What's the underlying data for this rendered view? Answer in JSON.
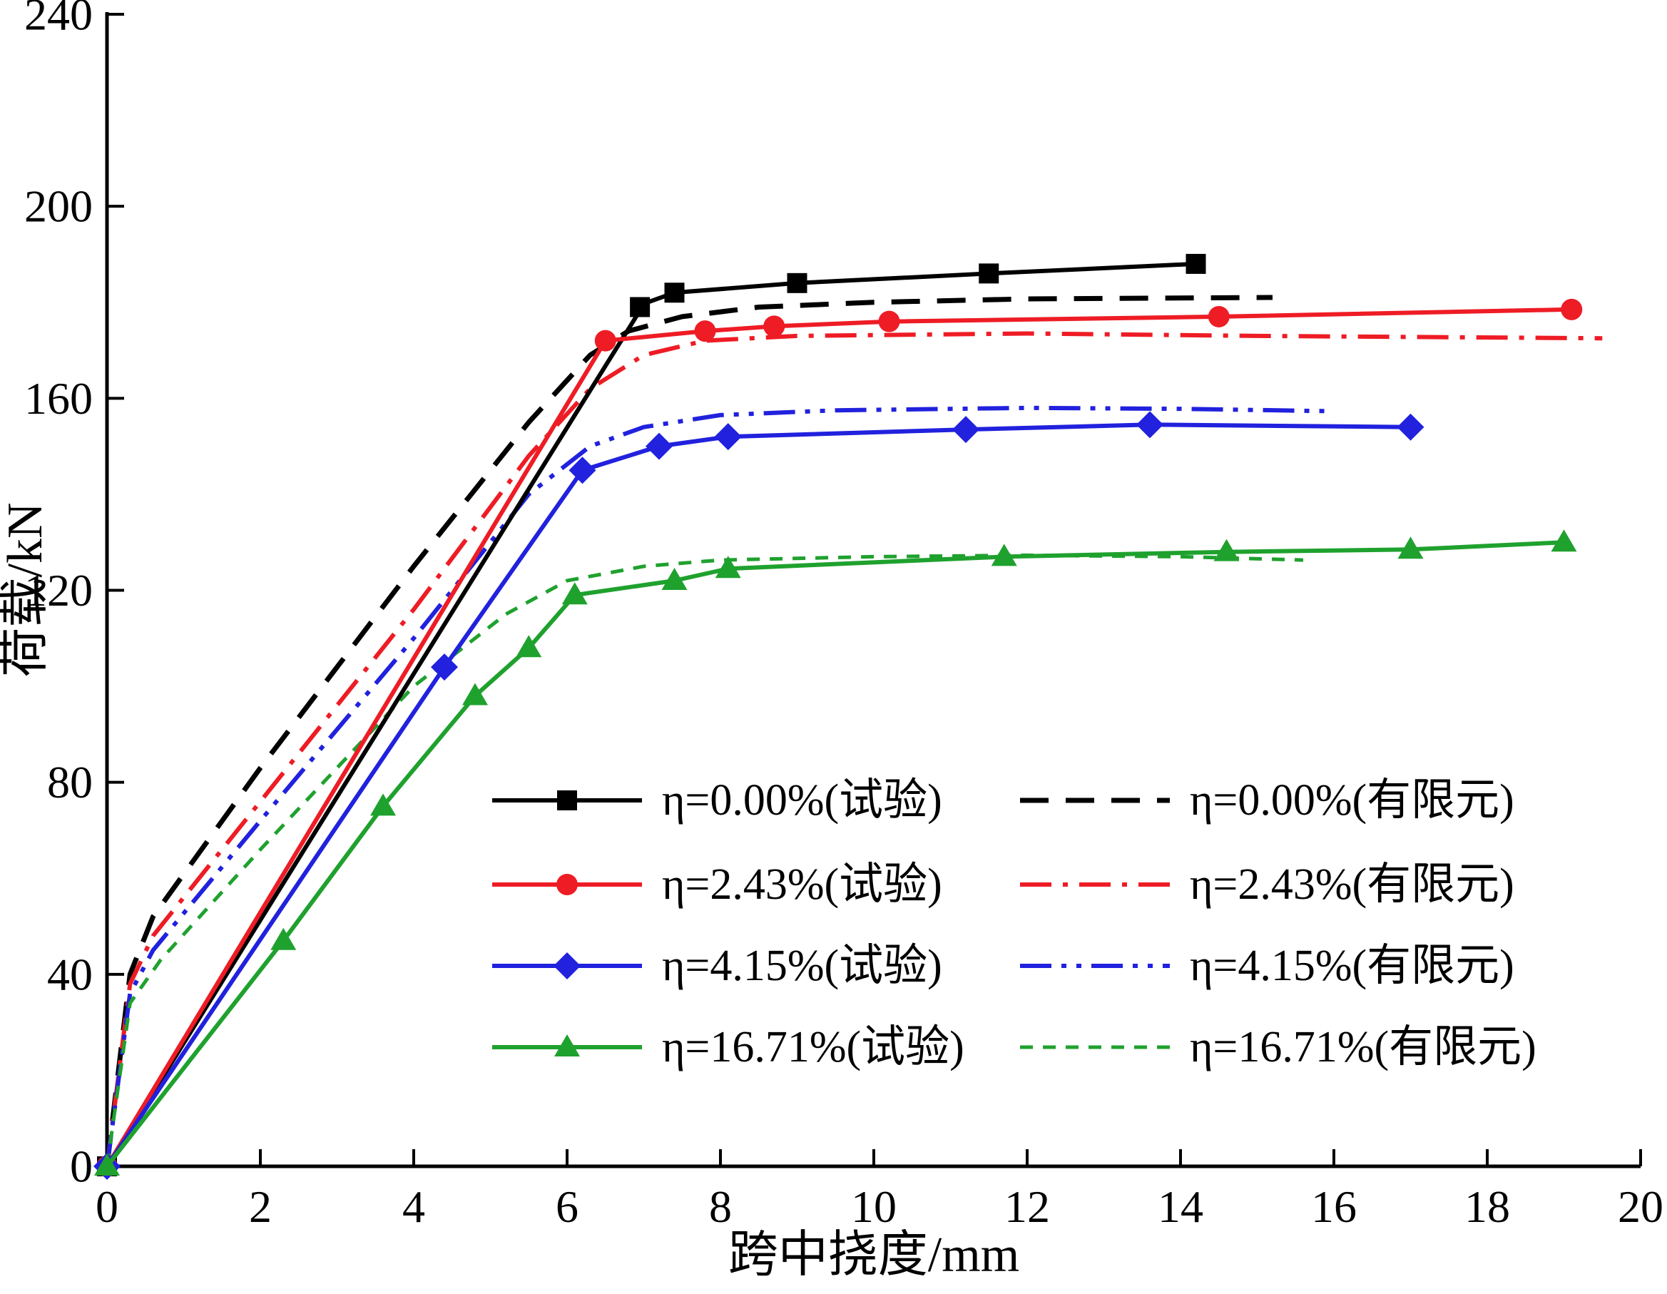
{
  "chart_data": {
    "type": "line",
    "title": "",
    "xlabel": "跨中挠度/mm",
    "ylabel": "荷载/kN",
    "xlim": [
      0,
      20
    ],
    "ylim": [
      0,
      240
    ],
    "xticks": [
      0,
      2,
      4,
      6,
      8,
      10,
      12,
      14,
      16,
      18,
      20
    ],
    "yticks": [
      0,
      40,
      80,
      120,
      160,
      200,
      240
    ],
    "grid": false,
    "legend_position": "inside-lower-center",
    "legend_columns": 2,
    "series": [
      {
        "id": "test-0-00",
        "label": "η=0.00%(试验)",
        "color": "#000000",
        "line": "solid",
        "marker": "square",
        "points": [
          [
            0,
            0
          ],
          [
            6.9,
            177
          ],
          [
            7.05,
            180
          ],
          [
            7.4,
            182
          ],
          [
            9.0,
            184
          ],
          [
            11.5,
            186
          ],
          [
            14.2,
            188
          ]
        ],
        "marker_points": [
          [
            0,
            0
          ],
          [
            6.95,
            179
          ],
          [
            7.4,
            182
          ],
          [
            9.0,
            184
          ],
          [
            11.5,
            186
          ],
          [
            14.2,
            188
          ]
        ]
      },
      {
        "id": "test-2-43",
        "label": "η=2.43%(试验)",
        "color": "#ee1c25",
        "line": "solid",
        "marker": "circle",
        "points": [
          [
            0,
            0
          ],
          [
            6.5,
            172
          ],
          [
            7.8,
            174
          ],
          [
            8.7,
            175
          ],
          [
            10.2,
            176
          ],
          [
            14.5,
            177
          ],
          [
            19.1,
            178.5
          ]
        ],
        "marker_points": [
          [
            0,
            0
          ],
          [
            6.5,
            172
          ],
          [
            7.8,
            174
          ],
          [
            8.7,
            175
          ],
          [
            10.2,
            176
          ],
          [
            14.5,
            177
          ],
          [
            19.1,
            178.5
          ]
        ]
      },
      {
        "id": "test-4-15",
        "label": "η=4.15%(试验)",
        "color": "#2121de",
        "line": "solid",
        "marker": "diamond",
        "points": [
          [
            0,
            0
          ],
          [
            4.4,
            104
          ],
          [
            6.2,
            145
          ],
          [
            7.2,
            150
          ],
          [
            8.1,
            152
          ],
          [
            11.2,
            153.5
          ],
          [
            13.6,
            154.5
          ],
          [
            17.0,
            154
          ]
        ],
        "marker_points": [
          [
            0,
            0
          ],
          [
            4.4,
            104
          ],
          [
            6.2,
            145
          ],
          [
            7.2,
            150
          ],
          [
            8.1,
            152
          ],
          [
            11.2,
            153.5
          ],
          [
            13.6,
            154.5
          ],
          [
            17.0,
            154
          ]
        ]
      },
      {
        "id": "test-16-71",
        "label": "η=16.71%(试验)",
        "color": "#1fa12e",
        "line": "solid",
        "marker": "triangle",
        "points": [
          [
            0,
            0
          ],
          [
            2.3,
            47
          ],
          [
            3.6,
            75
          ],
          [
            4.8,
            98
          ],
          [
            5.5,
            108
          ],
          [
            6.1,
            119
          ],
          [
            7.4,
            122
          ],
          [
            8.1,
            124.5
          ],
          [
            11.7,
            127
          ],
          [
            14.6,
            128
          ],
          [
            17.0,
            128.5
          ],
          [
            19.0,
            130
          ]
        ],
        "marker_points": [
          [
            0,
            0
          ],
          [
            2.3,
            47
          ],
          [
            3.6,
            75
          ],
          [
            4.8,
            98
          ],
          [
            5.5,
            108
          ],
          [
            6.1,
            119
          ],
          [
            7.4,
            122
          ],
          [
            8.1,
            124.5
          ],
          [
            11.7,
            127
          ],
          [
            14.6,
            128
          ],
          [
            17.0,
            128.5
          ],
          [
            19.0,
            130
          ]
        ]
      },
      {
        "id": "fe-0-00",
        "label": "η=0.00%(有限元)",
        "color": "#000000",
        "line": "dash",
        "marker": "none",
        "points": [
          [
            0,
            0
          ],
          [
            0.3,
            40
          ],
          [
            0.6,
            52
          ],
          [
            2,
            83
          ],
          [
            4,
            125
          ],
          [
            5.5,
            155
          ],
          [
            6.3,
            169
          ],
          [
            6.8,
            174
          ],
          [
            7.5,
            177
          ],
          [
            8.5,
            179
          ],
          [
            10,
            180
          ],
          [
            12,
            180.7
          ],
          [
            15.2,
            181
          ]
        ],
        "marker_points": []
      },
      {
        "id": "fe-2-43",
        "label": "η=2.43%(有限元)",
        "color": "#ee1c25",
        "line": "dashdot",
        "marker": "none",
        "points": [
          [
            0,
            0
          ],
          [
            0.3,
            38
          ],
          [
            0.6,
            48
          ],
          [
            2,
            76
          ],
          [
            4,
            116
          ],
          [
            5.5,
            148
          ],
          [
            6.3,
            162
          ],
          [
            7,
            169
          ],
          [
            7.8,
            172
          ],
          [
            9,
            173
          ],
          [
            12,
            173.5
          ],
          [
            15,
            173
          ],
          [
            19.5,
            172.5
          ]
        ],
        "marker_points": []
      },
      {
        "id": "fe-4-15",
        "label": "η=4.15%(有限元)",
        "color": "#2121de",
        "line": "dashdotdot",
        "marker": "none",
        "points": [
          [
            0,
            0
          ],
          [
            0.3,
            36
          ],
          [
            0.6,
            45
          ],
          [
            2,
            72
          ],
          [
            4,
            110
          ],
          [
            5.5,
            140
          ],
          [
            6.3,
            150
          ],
          [
            7,
            154
          ],
          [
            8,
            156.5
          ],
          [
            9.5,
            157.5
          ],
          [
            12,
            158
          ],
          [
            14,
            157.8
          ],
          [
            16,
            157.3
          ]
        ],
        "marker_points": []
      },
      {
        "id": "fe-16-71",
        "label": "η=16.71%(有限元)",
        "color": "#1fa12e",
        "line": "shortdash",
        "marker": "none",
        "points": [
          [
            0,
            0
          ],
          [
            0.3,
            34
          ],
          [
            0.7,
            43
          ],
          [
            2,
            66
          ],
          [
            4,
            100
          ],
          [
            5.2,
            115
          ],
          [
            6,
            122
          ],
          [
            7,
            125
          ],
          [
            8,
            126.3
          ],
          [
            10,
            127
          ],
          [
            12,
            127.3
          ],
          [
            14,
            127
          ],
          [
            15.6,
            126.3
          ]
        ],
        "marker_points": []
      }
    ]
  }
}
